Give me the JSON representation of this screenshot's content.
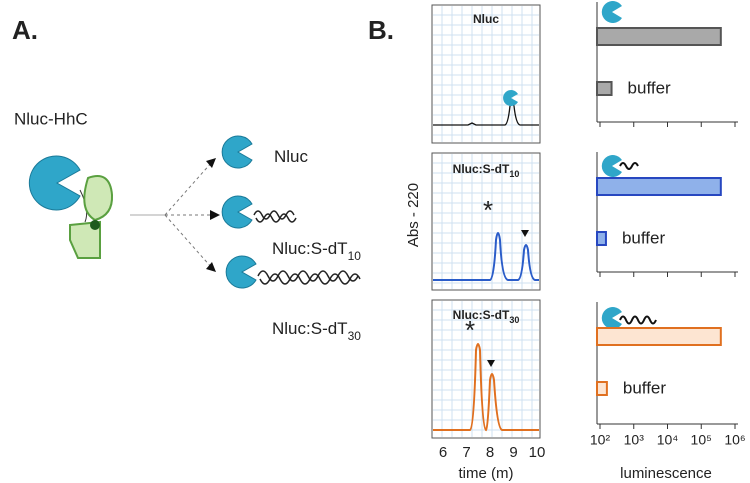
{
  "panel_a": {
    "label": "A.",
    "construct": "Nluc-HhC",
    "products": [
      {
        "text": "Nluc"
      },
      {
        "text": "Nluc:S-dT",
        "sub": "10"
      },
      {
        "text": "Nluc:S-dT",
        "sub": "30"
      }
    ]
  },
  "panel_b": {
    "label": "B.",
    "chromatograms": {
      "y_label": "Abs - 220",
      "x_label": "time (m)",
      "time_ticks": [
        6,
        7,
        8,
        9,
        10
      ],
      "titles": [
        {
          "text": "Nluc"
        },
        {
          "text": "Nluc:S-dT",
          "sub": "10"
        },
        {
          "text": "Nluc:S-dT",
          "sub": "30"
        }
      ]
    },
    "luminescence": {
      "x_label": "luminescence",
      "log_scale": true,
      "xlim": [
        100,
        1000000
      ],
      "xticks": [
        {
          "value": 100,
          "label": "10²"
        },
        {
          "value": 1000,
          "label": "10³"
        },
        {
          "value": 10000,
          "label": "10⁴"
        },
        {
          "value": 100000,
          "label": "10⁵"
        },
        {
          "value": 1000000,
          "label": "10⁶"
        }
      ],
      "buffer_label": "buffer",
      "rows": [
        {
          "fill": "#a9a9a9",
          "stroke": "#555555",
          "values": [
            380000,
            220
          ]
        },
        {
          "fill": "#8fb1ea",
          "stroke": "#2747c0",
          "values": [
            380000,
            150
          ]
        },
        {
          "fill": "#fde5d2",
          "stroke": "#e07020",
          "values": [
            380000,
            160
          ]
        }
      ]
    }
  }
}
